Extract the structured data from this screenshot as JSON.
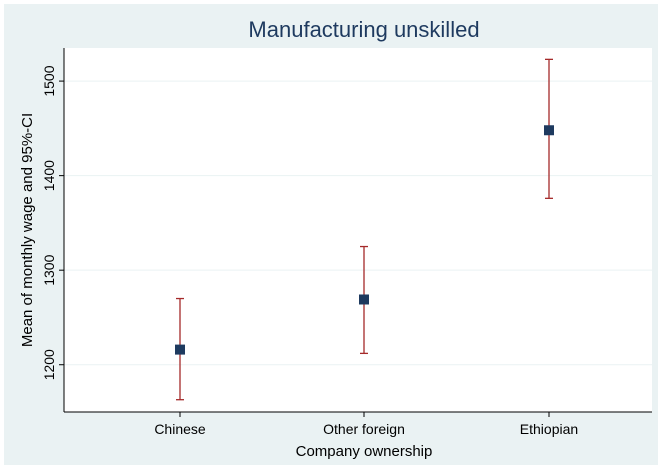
{
  "chart_data": {
    "type": "scatter",
    "title": "Manufacturing unskilled",
    "xlabel": "Company ownership",
    "ylabel": "Mean of monthly wage and 95%-CI",
    "categories": [
      "Chinese",
      "Other foreign",
      "Ethiopian"
    ],
    "series": [
      {
        "values": [
          1216,
          1269,
          1448
        ],
        "ci_lower": [
          1163,
          1212,
          1376
        ],
        "ci_upper": [
          1270,
          1325,
          1523
        ]
      }
    ],
    "ylim": [
      1150,
      1535
    ],
    "yticks": [
      1200,
      1300,
      1400,
      1500
    ],
    "grid": true,
    "colors": {
      "background": "#eaf2f3",
      "plot_area": "#ffffff",
      "marker": "#1e3a5f",
      "error_bar": "#a52a2a",
      "grid": "#eaf2f3",
      "title": "#1e3a5f"
    }
  }
}
